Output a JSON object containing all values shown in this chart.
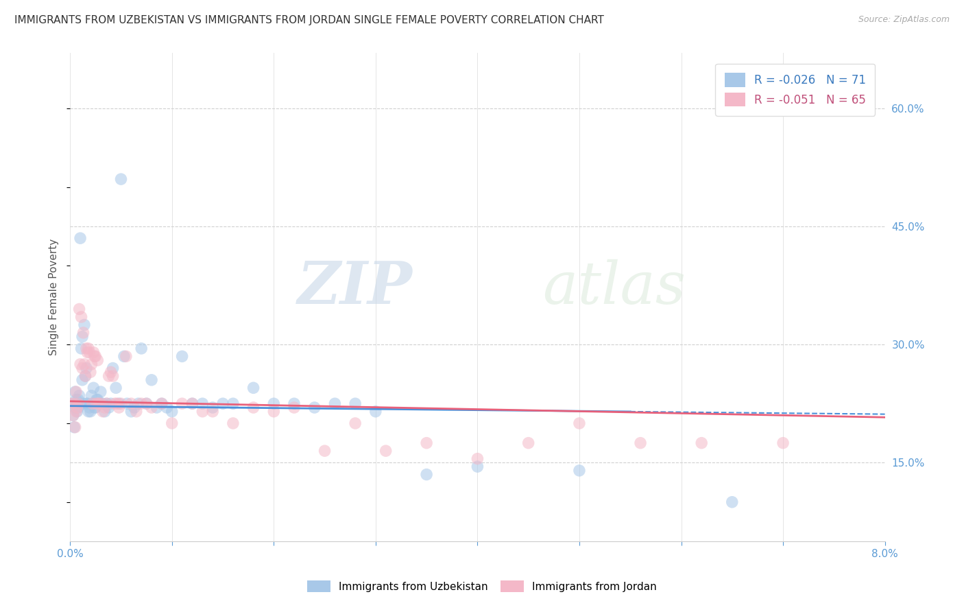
{
  "title": "IMMIGRANTS FROM UZBEKISTAN VS IMMIGRANTS FROM JORDAN SINGLE FEMALE POVERTY CORRELATION CHART",
  "source": "Source: ZipAtlas.com",
  "ylabel": "Single Female Poverty",
  "legend_label_1": "Immigrants from Uzbekistan",
  "legend_label_2": "Immigrants from Jordan",
  "R1": -0.026,
  "N1": 71,
  "R2": -0.051,
  "N2": 65,
  "color_uzbekistan": "#a8c8e8",
  "color_jordan": "#f4b8c8",
  "line_color_uzbekistan": "#4a90d9",
  "line_color_jordan": "#e8607a",
  "watermark_zip": "ZIP",
  "watermark_atlas": "atlas",
  "ylim_low": 0.05,
  "ylim_high": 0.67,
  "xlim_low": 0.0,
  "xlim_high": 0.08,
  "ylabel_right_vals": [
    0.15,
    0.3,
    0.45,
    0.6
  ],
  "ylabel_right_ticks": [
    "15.0%",
    "30.0%",
    "45.0%",
    "60.0%"
  ],
  "uzbekistan_x": [
    0.0002,
    0.0003,
    0.0004,
    0.0005,
    0.0005,
    0.0006,
    0.0007,
    0.0007,
    0.0008,
    0.0008,
    0.0009,
    0.001,
    0.0011,
    0.0012,
    0.0012,
    0.0013,
    0.0014,
    0.0015,
    0.0016,
    0.0016,
    0.0017,
    0.0018,
    0.0019,
    0.002,
    0.0021,
    0.0022,
    0.0023,
    0.0024,
    0.0025,
    0.0026,
    0.0027,
    0.0028,
    0.003,
    0.0032,
    0.0034,
    0.0036,
    0.0038,
    0.004,
    0.0042,
    0.0045,
    0.0048,
    0.005,
    0.0053,
    0.0056,
    0.006,
    0.0063,
    0.0067,
    0.007,
    0.0075,
    0.008,
    0.0085,
    0.009,
    0.0095,
    0.01,
    0.011,
    0.012,
    0.013,
    0.014,
    0.015,
    0.016,
    0.018,
    0.02,
    0.022,
    0.024,
    0.026,
    0.028,
    0.03,
    0.035,
    0.04,
    0.05,
    0.065
  ],
  "uzbekistan_y": [
    0.225,
    0.21,
    0.195,
    0.22,
    0.24,
    0.23,
    0.215,
    0.225,
    0.22,
    0.23,
    0.235,
    0.435,
    0.295,
    0.255,
    0.31,
    0.225,
    0.325,
    0.26,
    0.225,
    0.27,
    0.225,
    0.215,
    0.22,
    0.215,
    0.235,
    0.225,
    0.245,
    0.22,
    0.22,
    0.23,
    0.23,
    0.225,
    0.24,
    0.225,
    0.215,
    0.225,
    0.22,
    0.225,
    0.27,
    0.245,
    0.225,
    0.51,
    0.285,
    0.225,
    0.215,
    0.22,
    0.225,
    0.295,
    0.225,
    0.255,
    0.22,
    0.225,
    0.22,
    0.215,
    0.285,
    0.225,
    0.225,
    0.22,
    0.225,
    0.225,
    0.245,
    0.225,
    0.225,
    0.22,
    0.225,
    0.225,
    0.215,
    0.135,
    0.145,
    0.14,
    0.1
  ],
  "jordan_x": [
    0.0002,
    0.0003,
    0.0004,
    0.0005,
    0.0006,
    0.0006,
    0.0007,
    0.0008,
    0.0009,
    0.001,
    0.0011,
    0.0012,
    0.0013,
    0.0014,
    0.0015,
    0.0016,
    0.0017,
    0.0018,
    0.0019,
    0.002,
    0.0021,
    0.0022,
    0.0023,
    0.0024,
    0.0025,
    0.0026,
    0.0027,
    0.0028,
    0.003,
    0.0032,
    0.0034,
    0.0036,
    0.0038,
    0.004,
    0.0042,
    0.0044,
    0.0046,
    0.0048,
    0.005,
    0.0055,
    0.006,
    0.0065,
    0.007,
    0.0075,
    0.008,
    0.009,
    0.01,
    0.011,
    0.012,
    0.013,
    0.014,
    0.016,
    0.018,
    0.02,
    0.022,
    0.025,
    0.028,
    0.031,
    0.035,
    0.04,
    0.045,
    0.05,
    0.056,
    0.062,
    0.07
  ],
  "jordan_y": [
    0.225,
    0.21,
    0.225,
    0.195,
    0.24,
    0.215,
    0.22,
    0.225,
    0.345,
    0.275,
    0.335,
    0.27,
    0.315,
    0.275,
    0.26,
    0.295,
    0.29,
    0.295,
    0.29,
    0.265,
    0.275,
    0.225,
    0.29,
    0.285,
    0.285,
    0.225,
    0.28,
    0.225,
    0.225,
    0.215,
    0.22,
    0.225,
    0.26,
    0.265,
    0.26,
    0.225,
    0.225,
    0.22,
    0.225,
    0.285,
    0.225,
    0.215,
    0.225,
    0.225,
    0.22,
    0.225,
    0.2,
    0.225,
    0.225,
    0.215,
    0.215,
    0.2,
    0.22,
    0.215,
    0.22,
    0.165,
    0.2,
    0.165,
    0.175,
    0.155,
    0.175,
    0.2,
    0.175,
    0.175,
    0.175
  ]
}
